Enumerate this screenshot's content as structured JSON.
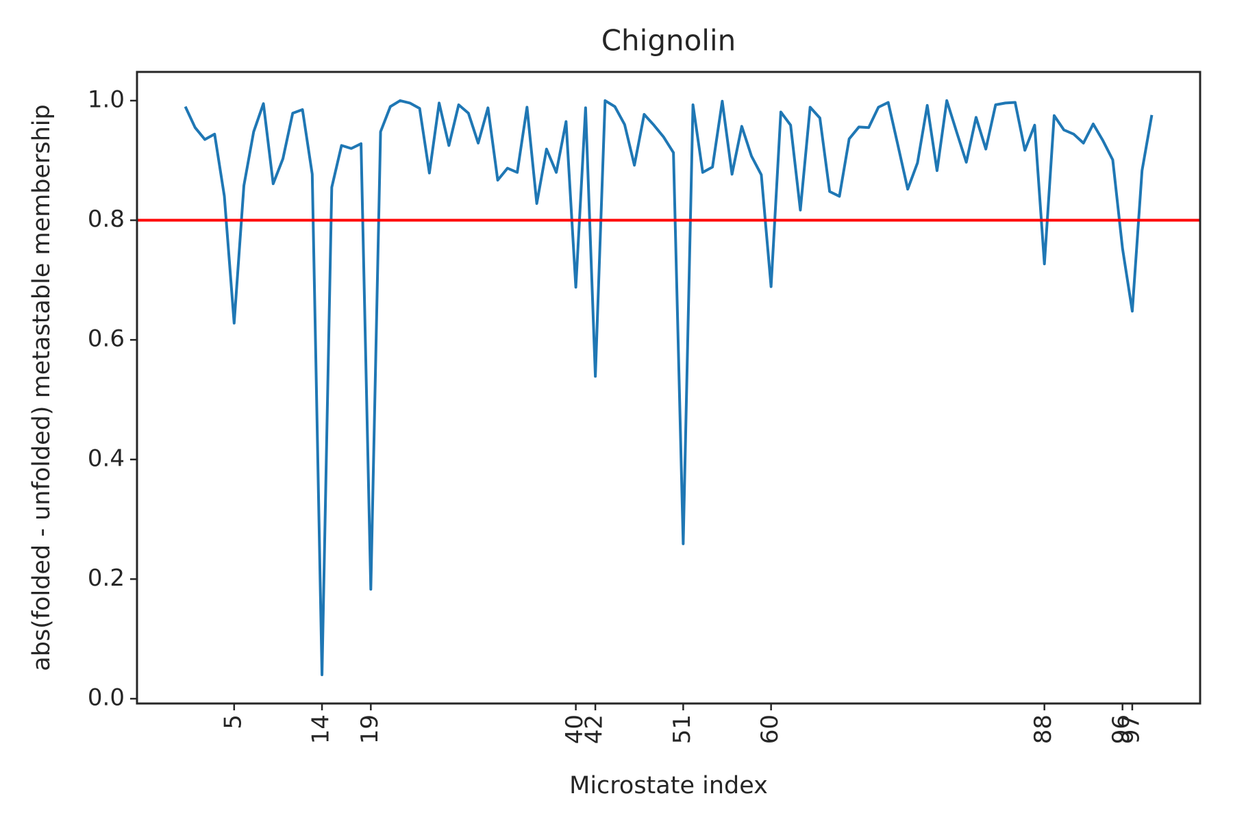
{
  "chart_data": {
    "type": "line",
    "title": "Chignolin",
    "xlabel": "Microstate index",
    "ylabel": "abs(folded - unfolded) metastable membership",
    "x": [
      0,
      1,
      2,
      3,
      4,
      5,
      6,
      7,
      8,
      9,
      10,
      11,
      12,
      13,
      14,
      15,
      16,
      17,
      18,
      19,
      20,
      21,
      22,
      23,
      24,
      25,
      26,
      27,
      28,
      29,
      30,
      31,
      32,
      33,
      34,
      35,
      36,
      37,
      38,
      39,
      40,
      41,
      42,
      43,
      44,
      45,
      46,
      47,
      48,
      49,
      50,
      51,
      52,
      53,
      54,
      55,
      56,
      57,
      58,
      59,
      60,
      61,
      62,
      63,
      64,
      65,
      66,
      67,
      68,
      69,
      70,
      71,
      72,
      73,
      74,
      75,
      76,
      77,
      78,
      79,
      80,
      81,
      82,
      83,
      84,
      85,
      86,
      87,
      88,
      89,
      90,
      91,
      92,
      93,
      94,
      95,
      96,
      97,
      98,
      99
    ],
    "series": [
      {
        "color": "#1f77b4",
        "values": [
          0.99,
          0.955,
          0.935,
          0.944,
          0.84,
          0.628,
          0.858,
          0.948,
          0.995,
          0.861,
          0.903,
          0.979,
          0.985,
          0.877,
          0.04,
          0.855,
          0.925,
          0.92,
          0.928,
          0.183,
          0.948,
          0.99,
          1.0,
          0.996,
          0.987,
          0.879,
          0.996,
          0.925,
          0.993,
          0.979,
          0.929,
          0.988,
          0.867,
          0.887,
          0.88,
          0.989,
          0.828,
          0.919,
          0.88,
          0.965,
          0.688,
          0.988,
          0.539,
          1.0,
          0.99,
          0.96,
          0.892,
          0.977,
          0.959,
          0.939,
          0.913,
          0.259,
          0.993,
          0.88,
          0.889,
          0.999,
          0.877,
          0.957,
          0.907,
          0.876,
          0.689,
          0.981,
          0.959,
          0.817,
          0.989,
          0.971,
          0.848,
          0.84,
          0.936,
          0.956,
          0.955,
          0.989,
          0.997,
          0.925,
          0.852,
          0.896,
          0.992,
          0.883,
          1.0,
          0.948,
          0.897,
          0.972,
          0.919,
          0.993,
          0.996,
          0.997,
          0.917,
          0.959,
          0.727,
          0.975,
          0.951,
          0.944,
          0.929,
          0.961,
          0.933,
          0.901,
          0.753,
          0.648,
          0.883,
          0.976
        ]
      }
    ],
    "hlines": [
      {
        "value": 0.8,
        "color": "red"
      }
    ],
    "xlim": [
      -4.95,
      103.95
    ],
    "xticks": [
      5,
      14,
      19,
      40,
      42,
      51,
      60,
      88,
      96,
      97
    ],
    "ylim": [
      -0.008,
      1.048
    ],
    "yticks": [
      {
        "value": 0,
        "label": "0.0"
      },
      0.2,
      0.4,
      0.6,
      0.8,
      {
        "value": 1,
        "label": "1.0"
      }
    ]
  }
}
